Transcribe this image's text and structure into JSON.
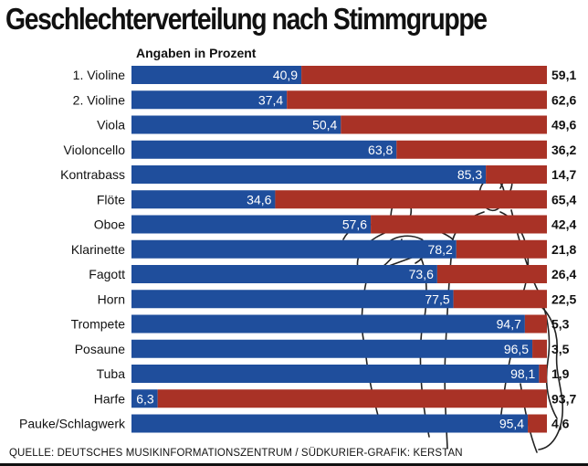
{
  "title": "Geschlechterverteilung nach Stimmgruppe",
  "subtitle": "Angaben in Prozent",
  "source": "QUELLE: DEUTSCHES MUSIKINFORMATIONSZENTRUM / SÜDKURIER-GRAFIK: KERSTAN",
  "colors": {
    "series_a": "#1f4e9c",
    "series_b": "#a93226",
    "text": "#111111"
  },
  "illustration": "line-drawing-violinist-and-cellist",
  "chart_data": {
    "type": "bar",
    "stacked": true,
    "orientation": "horizontal",
    "title": "Geschlechterverteilung nach Stimmgruppe",
    "subtitle": "Angaben in Prozent",
    "xlim": [
      0,
      100
    ],
    "grid": false,
    "categories": [
      "1. Violine",
      "2. Violine",
      "Viola",
      "Violoncello",
      "Kontrabass",
      "Flöte",
      "Oboe",
      "Klarinette",
      "Fagott",
      "Horn",
      "Trompete",
      "Posaune",
      "Tuba",
      "Harfe",
      "Pauke/Schlagwerk"
    ],
    "series": [
      {
        "values": [
          40.9,
          37.4,
          50.4,
          63.8,
          85.3,
          34.6,
          57.6,
          78.2,
          73.6,
          77.5,
          94.7,
          96.5,
          98.1,
          6.3,
          95.4
        ]
      },
      {
        "values": [
          59.1,
          62.6,
          49.6,
          36.2,
          14.7,
          65.4,
          42.4,
          21.8,
          26.4,
          22.5,
          5.3,
          3.5,
          1.9,
          93.7,
          4.6
        ]
      }
    ],
    "value_labels_a": [
      "40,9",
      "37,4",
      "50,4",
      "63,8",
      "85,3",
      "34,6",
      "57,6",
      "78,2",
      "73,6",
      "77,5",
      "94,7",
      "96,5",
      "98,1",
      "6,3",
      "95,4"
    ],
    "value_labels_b": [
      "59,1",
      "62,6",
      "49,6",
      "36,2",
      "14,7",
      "65,4",
      "42,4",
      "21,8",
      "26,4",
      "22,5",
      "5,3",
      "3,5",
      "1,9",
      "93,7",
      "4,6"
    ]
  }
}
